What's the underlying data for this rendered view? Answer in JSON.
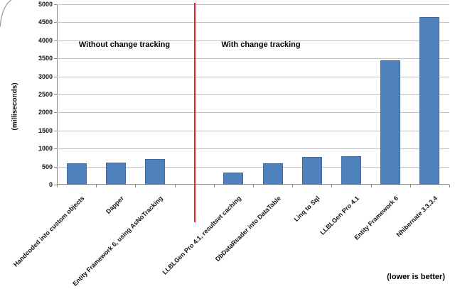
{
  "chart": {
    "y_axis_title": "(milliseconds)",
    "sections": [
      "Without change tracking",
      "With change tracking"
    ],
    "footnote": "(lower is better)",
    "colors": {
      "bar": "#4f81bd",
      "bar_border": "#41699c",
      "divider": "#e62222",
      "gridline": "#c3c3c3",
      "axis": "#898989"
    }
  },
  "chart_data": {
    "type": "bar",
    "title": "",
    "xlabel": "",
    "ylabel": "(milliseconds)",
    "ylim": [
      0,
      5000
    ],
    "yticks": [
      0,
      500,
      1000,
      1500,
      2000,
      2500,
      3000,
      3500,
      4000,
      4500,
      5000
    ],
    "grid": true,
    "legend": "none",
    "bar_color": "#4f81bd",
    "categories": [
      "Handcoded into custom objects",
      "Dapper",
      "Entity Framework 6, using AsNoTracking",
      "LLBLGen Pro 4.1, resultset caching",
      "DbDataReader into DataTable",
      "Linq to Sql",
      "LLBLGen Pro 4.1",
      "Entity Framework 6",
      "Nhibernate 3.3.3.4"
    ],
    "values": [
      590,
      615,
      700,
      325,
      600,
      760,
      785,
      3450,
      4650
    ],
    "groups": [
      {
        "label": "Without change tracking",
        "category_indexes": [
          0,
          1,
          2
        ]
      },
      {
        "label": "With change tracking",
        "category_indexes": [
          3,
          4,
          5,
          6,
          7,
          8
        ]
      }
    ],
    "divider_slot_index": 3,
    "annotations": [
      "Without change tracking",
      "With change tracking",
      "(lower is better)"
    ]
  }
}
